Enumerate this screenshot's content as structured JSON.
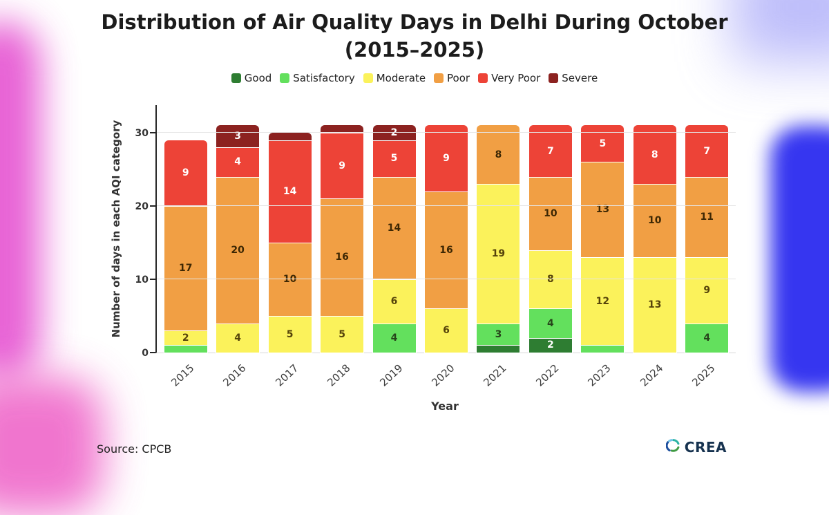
{
  "page": {
    "title_line1": "Distribution of Air Quality Days in Delhi During October",
    "title_line2": "(2015–2025)",
    "source": "Source: CPCB",
    "brand": "CREA"
  },
  "chart_data": {
    "type": "bar",
    "stacked": true,
    "title": "Distribution of Air Quality Days in Delhi During October (2015–2025)",
    "xlabel": "Year",
    "ylabel": "Number of days in each AQI category",
    "ylim": [
      0,
      33
    ],
    "yticks": [
      0,
      10,
      20,
      30
    ],
    "grid": true,
    "legend_position": "top",
    "categories": [
      "2015",
      "2016",
      "2017",
      "2018",
      "2019",
      "2020",
      "2021",
      "2022",
      "2023",
      "2024",
      "2025"
    ],
    "series": [
      {
        "name": "Good",
        "color": "#2e7d32",
        "label_color": "#ffffff",
        "values": [
          0,
          0,
          0,
          0,
          0,
          0,
          1,
          2,
          0,
          0,
          0
        ]
      },
      {
        "name": "Satisfactory",
        "color": "#63e05d",
        "label_color": "#27441b",
        "values": [
          1,
          0,
          0,
          0,
          4,
          0,
          3,
          4,
          1,
          0,
          4
        ]
      },
      {
        "name": "Moderate",
        "color": "#fbf25b",
        "label_color": "#55430a",
        "values": [
          2,
          4,
          5,
          5,
          6,
          6,
          19,
          8,
          12,
          13,
          9
        ]
      },
      {
        "name": "Poor",
        "color": "#f19f44",
        "label_color": "#3d2703",
        "values": [
          17,
          20,
          10,
          16,
          14,
          16,
          8,
          10,
          13,
          10,
          11
        ]
      },
      {
        "name": "Very Poor",
        "color": "#ed4337",
        "label_color": "#ffffff",
        "values": [
          9,
          4,
          14,
          9,
          5,
          9,
          0,
          7,
          5,
          8,
          7
        ]
      },
      {
        "name": "Severe",
        "color": "#8c2220",
        "label_color": "#ffffff",
        "values": [
          0,
          3,
          1,
          1,
          2,
          0,
          0,
          0,
          0,
          0,
          0
        ]
      }
    ],
    "label_min_value": 2
  }
}
